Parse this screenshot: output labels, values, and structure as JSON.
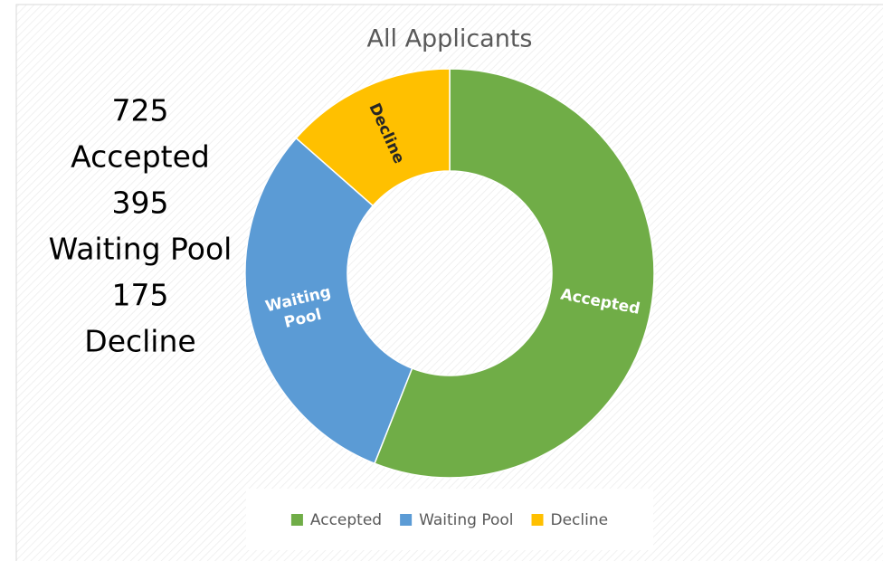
{
  "chart_data": {
    "type": "donut",
    "title": "All Applicants",
    "categories": [
      "Accepted",
      "Waiting Pool",
      "Decline"
    ],
    "values": [
      725,
      395,
      175
    ],
    "colors": [
      "#70ad47",
      "#5b9bd5",
      "#ffc000"
    ],
    "legend": "bottom"
  }
}
